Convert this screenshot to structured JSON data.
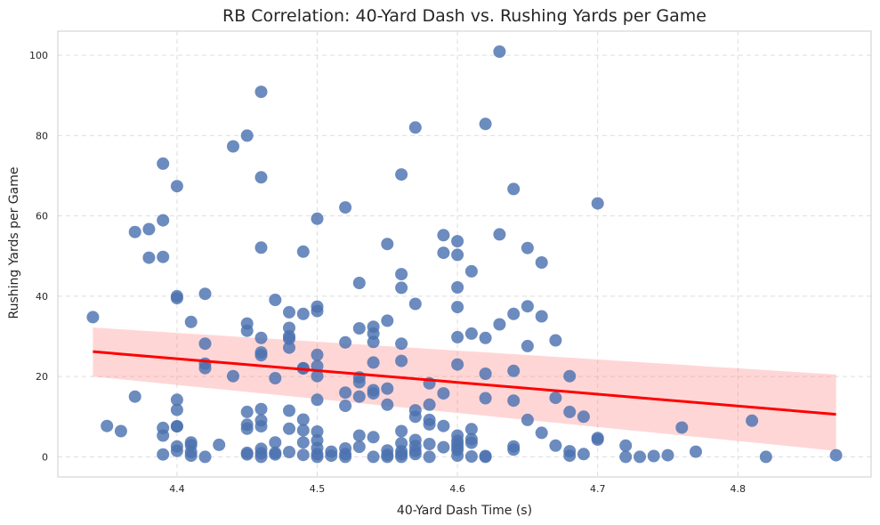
{
  "chart_data": {
    "type": "scatter",
    "title": "RB Correlation: 40-Yard Dash vs. Rushing Yards per Game",
    "xlabel": "40-Yard Dash Time (s)",
    "ylabel": "Rushing Yards per Game",
    "xlim": [
      4.315,
      4.895
    ],
    "ylim": [
      -5,
      106
    ],
    "xticks": [
      4.4,
      4.5,
      4.6,
      4.7,
      4.8
    ],
    "yticks": [
      0,
      20,
      40,
      60,
      80,
      100
    ],
    "grid": true,
    "colors": {
      "points": "#4c72b0",
      "regression": "#ff0000",
      "band": "#ff6b6b"
    },
    "regression": {
      "x": [
        4.34,
        4.87
      ],
      "y": [
        26.2,
        10.6
      ],
      "ci_upper": [
        32.2,
        20.5
      ],
      "ci_lower": [
        20.0,
        1.5
      ]
    },
    "points": [
      [
        4.34,
        34.8
      ],
      [
        4.35,
        7.7
      ],
      [
        4.36,
        6.4
      ],
      [
        4.37,
        15.0
      ],
      [
        4.37,
        56.0
      ],
      [
        4.38,
        56.7
      ],
      [
        4.38,
        49.6
      ],
      [
        4.39,
        73.0
      ],
      [
        4.39,
        58.9
      ],
      [
        4.39,
        49.8
      ],
      [
        4.39,
        7.2
      ],
      [
        4.39,
        5.3
      ],
      [
        4.39,
        0.6
      ],
      [
        4.4,
        67.4
      ],
      [
        4.4,
        40.0
      ],
      [
        4.4,
        39.5
      ],
      [
        4.4,
        14.2
      ],
      [
        4.4,
        11.7
      ],
      [
        4.4,
        7.6
      ],
      [
        4.4,
        7.6
      ],
      [
        4.4,
        2.6
      ],
      [
        4.4,
        1.5
      ],
      [
        4.41,
        33.6
      ],
      [
        4.41,
        3.6
      ],
      [
        4.41,
        2.9
      ],
      [
        4.41,
        1.2
      ],
      [
        4.41,
        0.3
      ],
      [
        4.42,
        40.6
      ],
      [
        4.42,
        28.2
      ],
      [
        4.42,
        23.2
      ],
      [
        4.42,
        22.1
      ],
      [
        4.42,
        0.0
      ],
      [
        4.43,
        3.0
      ],
      [
        4.44,
        77.3
      ],
      [
        4.44,
        20.1
      ],
      [
        4.45,
        80.0
      ],
      [
        4.45,
        33.2
      ],
      [
        4.45,
        31.4
      ],
      [
        4.45,
        11.2
      ],
      [
        4.45,
        8.0
      ],
      [
        4.45,
        7.0
      ],
      [
        4.45,
        1.0
      ],
      [
        4.45,
        0.6
      ],
      [
        4.46,
        90.9
      ],
      [
        4.46,
        69.6
      ],
      [
        4.46,
        52.1
      ],
      [
        4.46,
        29.6
      ],
      [
        4.46,
        26.0
      ],
      [
        4.46,
        25.3
      ],
      [
        4.46,
        11.9
      ],
      [
        4.46,
        9.1
      ],
      [
        4.46,
        7.6
      ],
      [
        4.46,
        2.0
      ],
      [
        4.46,
        0.9
      ],
      [
        4.46,
        0.0
      ],
      [
        4.47,
        39.1
      ],
      [
        4.47,
        19.6
      ],
      [
        4.47,
        3.6
      ],
      [
        4.47,
        1.0
      ],
      [
        4.47,
        0.6
      ],
      [
        4.48,
        36.0
      ],
      [
        4.48,
        32.1
      ],
      [
        4.48,
        30.0
      ],
      [
        4.48,
        29.4
      ],
      [
        4.48,
        27.2
      ],
      [
        4.48,
        11.5
      ],
      [
        4.48,
        7.0
      ],
      [
        4.48,
        1.2
      ],
      [
        4.49,
        51.1
      ],
      [
        4.49,
        35.6
      ],
      [
        4.49,
        22.1
      ],
      [
        4.49,
        22.0
      ],
      [
        4.49,
        9.3
      ],
      [
        4.49,
        6.6
      ],
      [
        4.49,
        3.6
      ],
      [
        4.49,
        0.5
      ],
      [
        4.5,
        59.3
      ],
      [
        4.5,
        37.4
      ],
      [
        4.5,
        36.3
      ],
      [
        4.5,
        25.4
      ],
      [
        4.5,
        22.6
      ],
      [
        4.5,
        20.1
      ],
      [
        4.5,
        14.2
      ],
      [
        4.5,
        6.3
      ],
      [
        4.5,
        4.1
      ],
      [
        4.5,
        2.2
      ],
      [
        4.5,
        0.7
      ],
      [
        4.5,
        0.0
      ],
      [
        4.51,
        1.3
      ],
      [
        4.51,
        0.3
      ],
      [
        4.52,
        62.1
      ],
      [
        4.52,
        28.5
      ],
      [
        4.52,
        16.0
      ],
      [
        4.52,
        12.7
      ],
      [
        4.52,
        2.1
      ],
      [
        4.52,
        0.7
      ],
      [
        4.52,
        0.0
      ],
      [
        4.53,
        43.3
      ],
      [
        4.53,
        32.0
      ],
      [
        4.53,
        19.8
      ],
      [
        4.53,
        18.6
      ],
      [
        4.53,
        15.0
      ],
      [
        4.53,
        5.3
      ],
      [
        4.53,
        2.5
      ],
      [
        4.54,
        32.4
      ],
      [
        4.54,
        30.7
      ],
      [
        4.54,
        28.6
      ],
      [
        4.54,
        23.5
      ],
      [
        4.54,
        16.6
      ],
      [
        4.54,
        15.8
      ],
      [
        4.54,
        4.9
      ],
      [
        4.54,
        0.0
      ],
      [
        4.55,
        53.0
      ],
      [
        4.55,
        33.9
      ],
      [
        4.55,
        17.0
      ],
      [
        4.55,
        13.0
      ],
      [
        4.55,
        1.6
      ],
      [
        4.55,
        0.5
      ],
      [
        4.55,
        0.0
      ],
      [
        4.56,
        70.3
      ],
      [
        4.56,
        45.5
      ],
      [
        4.56,
        42.1
      ],
      [
        4.56,
        28.2
      ],
      [
        4.56,
        23.9
      ],
      [
        4.56,
        6.4
      ],
      [
        4.56,
        3.4
      ],
      [
        4.56,
        1.4
      ],
      [
        4.56,
        0.7
      ],
      [
        4.56,
        0.0
      ],
      [
        4.57,
        82.0
      ],
      [
        4.57,
        38.1
      ],
      [
        4.57,
        11.6
      ],
      [
        4.57,
        10.0
      ],
      [
        4.57,
        4.2
      ],
      [
        4.57,
        2.7
      ],
      [
        4.57,
        1.5
      ],
      [
        4.57,
        0.7
      ],
      [
        4.58,
        18.3
      ],
      [
        4.58,
        13.0
      ],
      [
        4.58,
        9.2
      ],
      [
        4.58,
        8.1
      ],
      [
        4.58,
        3.2
      ],
      [
        4.58,
        0.0
      ],
      [
        4.59,
        55.2
      ],
      [
        4.59,
        50.8
      ],
      [
        4.59,
        15.8
      ],
      [
        4.59,
        7.7
      ],
      [
        4.59,
        2.4
      ],
      [
        4.6,
        53.7
      ],
      [
        4.6,
        50.3
      ],
      [
        4.6,
        42.2
      ],
      [
        4.6,
        37.3
      ],
      [
        4.6,
        29.8
      ],
      [
        4.6,
        23.0
      ],
      [
        4.6,
        5.3
      ],
      [
        4.6,
        4.0
      ],
      [
        4.6,
        3.2
      ],
      [
        4.6,
        2.4
      ],
      [
        4.6,
        1.7
      ],
      [
        4.6,
        0.3
      ],
      [
        4.61,
        46.2
      ],
      [
        4.61,
        30.7
      ],
      [
        4.61,
        6.9
      ],
      [
        4.61,
        4.4
      ],
      [
        4.61,
        3.5
      ],
      [
        4.61,
        0.1
      ],
      [
        4.62,
        82.9
      ],
      [
        4.62,
        29.6
      ],
      [
        4.62,
        20.7
      ],
      [
        4.62,
        14.6
      ],
      [
        4.62,
        0.2
      ],
      [
        4.62,
        0.0
      ],
      [
        4.63,
        100.9
      ],
      [
        4.63,
        55.4
      ],
      [
        4.63,
        33.0
      ],
      [
        4.64,
        66.7
      ],
      [
        4.64,
        35.6
      ],
      [
        4.64,
        21.4
      ],
      [
        4.64,
        14.0
      ],
      [
        4.64,
        2.6
      ],
      [
        4.64,
        1.8
      ],
      [
        4.65,
        52.0
      ],
      [
        4.65,
        37.5
      ],
      [
        4.65,
        27.6
      ],
      [
        4.65,
        9.2
      ],
      [
        4.66,
        48.4
      ],
      [
        4.66,
        35.0
      ],
      [
        4.66,
        6.0
      ],
      [
        4.67,
        29.0
      ],
      [
        4.67,
        14.7
      ],
      [
        4.67,
        2.8
      ],
      [
        4.68,
        20.1
      ],
      [
        4.68,
        11.2
      ],
      [
        4.68,
        1.4
      ],
      [
        4.68,
        0.3
      ],
      [
        4.69,
        10.0
      ],
      [
        4.69,
        0.7
      ],
      [
        4.7,
        63.1
      ],
      [
        4.7,
        4.7
      ],
      [
        4.7,
        4.3
      ],
      [
        4.72,
        2.8
      ],
      [
        4.72,
        0.0
      ],
      [
        4.73,
        0.0
      ],
      [
        4.74,
        0.2
      ],
      [
        4.75,
        0.4
      ],
      [
        4.76,
        7.3
      ],
      [
        4.77,
        1.3
      ],
      [
        4.81,
        9.0
      ],
      [
        4.82,
        0.0
      ],
      [
        4.87,
        0.4
      ]
    ]
  }
}
